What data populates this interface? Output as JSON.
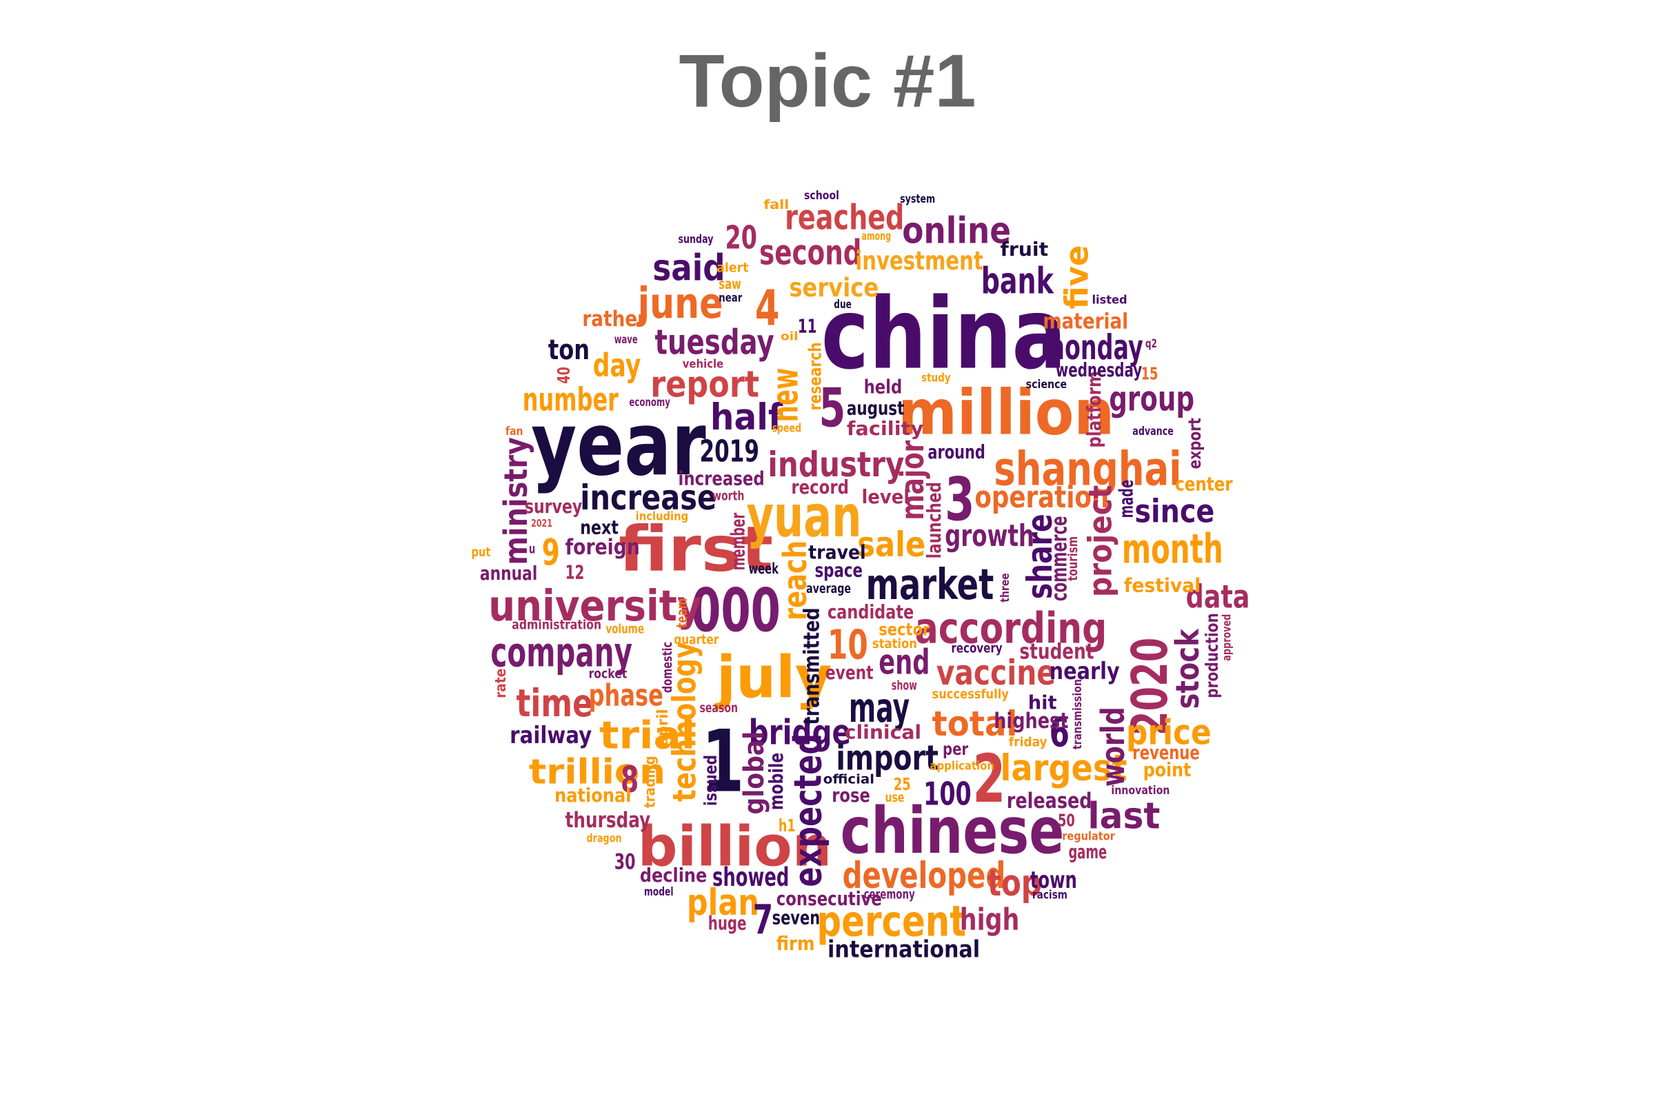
{
  "title": "Topic #1",
  "palette": [
    "#1b0c41",
    "#4a0c6b",
    "#781c6d",
    "#a52c60",
    "#cf4446",
    "#ed6925",
    "#fb9b06",
    "#f7a41a"
  ],
  "words": [
    {
      "text": "china",
      "color": "#4a0c6b"
    },
    {
      "text": "year",
      "color": "#1b0c41"
    },
    {
      "text": "million",
      "color": "#ed6925"
    },
    {
      "text": "chinese",
      "color": "#781c6d"
    },
    {
      "text": "first",
      "color": "#cf4446"
    },
    {
      "text": "yuan",
      "color": "#f7a41a"
    },
    {
      "text": "billion",
      "color": "#cf4446"
    },
    {
      "text": "000",
      "color": "#781c6d"
    },
    {
      "text": "1",
      "color": "#1b0c41"
    },
    {
      "text": "july",
      "color": "#fb9b06"
    },
    {
      "text": "shanghai",
      "color": "#ed6925"
    },
    {
      "text": "2020",
      "color": "#a52c60"
    },
    {
      "text": "according",
      "color": "#a52c60"
    },
    {
      "text": "market",
      "color": "#1b0c41"
    },
    {
      "text": "university",
      "color": "#a52c60"
    },
    {
      "text": "company",
      "color": "#781c6d"
    },
    {
      "text": "percent",
      "color": "#fb9b06"
    },
    {
      "text": "month",
      "color": "#fb9b06"
    },
    {
      "text": "2",
      "color": "#cf4446"
    },
    {
      "text": "3",
      "color": "#781c6d"
    },
    {
      "text": "4",
      "color": "#ed6925"
    },
    {
      "text": "5",
      "color": "#781c6d"
    },
    {
      "text": "may",
      "color": "#1b0c41"
    },
    {
      "text": "june",
      "color": "#ed6925"
    },
    {
      "text": "reached",
      "color": "#cf4446"
    },
    {
      "text": "online",
      "color": "#781c6d"
    },
    {
      "text": "second",
      "color": "#a52c60"
    },
    {
      "text": "bank",
      "color": "#4a0c6b"
    },
    {
      "text": "said",
      "color": "#4a0c6b"
    },
    {
      "text": "tuesday",
      "color": "#781c6d"
    },
    {
      "text": "monday",
      "color": "#4a0c6b"
    },
    {
      "text": "report",
      "color": "#cf4446"
    },
    {
      "text": "half",
      "color": "#4a0c6b"
    },
    {
      "text": "new",
      "color": "#fb9b06"
    },
    {
      "text": "industry",
      "color": "#a52c60"
    },
    {
      "text": "increase",
      "color": "#1b0c41"
    },
    {
      "text": "2019",
      "color": "#1b0c41"
    },
    {
      "text": "group",
      "color": "#781c6d"
    },
    {
      "text": "since",
      "color": "#4a0c6b"
    },
    {
      "text": "operation",
      "color": "#ed6925"
    },
    {
      "text": "growth",
      "color": "#781c6d"
    },
    {
      "text": "sale",
      "color": "#fb9b06"
    },
    {
      "text": "share",
      "color": "#4a0c6b"
    },
    {
      "text": "project",
      "color": "#a52c60"
    },
    {
      "text": "data",
      "color": "#a52c60"
    },
    {
      "text": "stock",
      "color": "#781c6d"
    },
    {
      "text": "vaccine",
      "color": "#cf4446"
    },
    {
      "text": "end",
      "color": "#781c6d"
    },
    {
      "text": "time",
      "color": "#cf4446"
    },
    {
      "text": "phase",
      "color": "#ed6925"
    },
    {
      "text": "technology",
      "color": "#fb9b06"
    },
    {
      "text": "trial",
      "color": "#fb9b06"
    },
    {
      "text": "bridge",
      "color": "#4a0c6b"
    },
    {
      "text": "import",
      "color": "#1b0c41"
    },
    {
      "text": "expected",
      "color": "#4a0c6b"
    },
    {
      "text": "total",
      "color": "#ed6925"
    },
    {
      "text": "largest",
      "color": "#fb9b06"
    },
    {
      "text": "world",
      "color": "#781c6d"
    },
    {
      "text": "price",
      "color": "#fb9b06"
    },
    {
      "text": "last",
      "color": "#781c6d"
    },
    {
      "text": "trillion",
      "color": "#fb9b06"
    },
    {
      "text": "developed",
      "color": "#ed6925"
    },
    {
      "text": "plan",
      "color": "#fb9b06"
    },
    {
      "text": "top",
      "color": "#cf4446"
    },
    {
      "text": "high",
      "color": "#a52c60"
    },
    {
      "text": "ministry",
      "color": "#781c6d"
    },
    {
      "text": "number",
      "color": "#fb9b06"
    },
    {
      "text": "day",
      "color": "#fb9b06"
    },
    {
      "text": "ton",
      "color": "#1b0c41"
    },
    {
      "text": "investment",
      "color": "#f7a41a"
    },
    {
      "text": "service",
      "color": "#f7a41a"
    },
    {
      "text": "five",
      "color": "#fb9b06"
    },
    {
      "text": "major",
      "color": "#a52c60"
    },
    {
      "text": "reach",
      "color": "#fb9b06"
    },
    {
      "text": "20",
      "color": "#a52c60"
    },
    {
      "text": "10",
      "color": "#ed6925"
    },
    {
      "text": "100",
      "color": "#4a0c6b"
    },
    {
      "text": "6",
      "color": "#4a0c6b"
    },
    {
      "text": "7",
      "color": "#4a0c6b"
    },
    {
      "text": "8",
      "color": "#a52c60"
    },
    {
      "text": "9",
      "color": "#fb9b06"
    },
    {
      "text": "global",
      "color": "#781c6d"
    },
    {
      "text": "railway",
      "color": "#4a0c6b"
    },
    {
      "text": "thursday",
      "color": "#a52c60"
    },
    {
      "text": "showed",
      "color": "#4a0c6b"
    },
    {
      "text": "international",
      "color": "#1b0c41"
    },
    {
      "text": "seven",
      "color": "#1b0c41"
    },
    {
      "text": "consecutive",
      "color": "#781c6d"
    },
    {
      "text": "town",
      "color": "#4a0c6b"
    },
    {
      "text": "released",
      "color": "#781c6d"
    },
    {
      "text": "highest",
      "color": "#781c6d"
    },
    {
      "text": "nearly",
      "color": "#4a0c6b"
    },
    {
      "text": "student",
      "color": "#a52c60"
    },
    {
      "text": "transmitted",
      "color": "#1b0c41"
    },
    {
      "text": "candidate",
      "color": "#a52c60"
    },
    {
      "text": "travel",
      "color": "#1b0c41"
    },
    {
      "text": "space",
      "color": "#4a0c6b"
    },
    {
      "text": "fruit",
      "color": "#1b0c41"
    },
    {
      "text": "rather",
      "color": "#ed6925"
    },
    {
      "text": "national",
      "color": "#fb9b06"
    },
    {
      "text": "foreign",
      "color": "#781c6d"
    },
    {
      "text": "next",
      "color": "#1b0c41"
    },
    {
      "text": "annual",
      "color": "#781c6d"
    },
    {
      "text": "survey",
      "color": "#a52c60"
    },
    {
      "text": "increased",
      "color": "#781c6d"
    },
    {
      "text": "august",
      "color": "#1b0c41"
    },
    {
      "text": "facility",
      "color": "#a52c60"
    },
    {
      "text": "held",
      "color": "#781c6d"
    },
    {
      "text": "around",
      "color": "#4a0c6b"
    },
    {
      "text": "record",
      "color": "#a52c60"
    },
    {
      "text": "level",
      "color": "#a52c60"
    },
    {
      "text": "launched",
      "color": "#a52c60"
    },
    {
      "text": "member",
      "color": "#a52c60"
    },
    {
      "text": "commerce",
      "color": "#781c6d"
    },
    {
      "text": "festival",
      "color": "#fb9b06"
    },
    {
      "text": "production",
      "color": "#781c6d"
    },
    {
      "text": "revenue",
      "color": "#ed6925"
    },
    {
      "text": "point",
      "color": "#fb9b06"
    },
    {
      "text": "center",
      "color": "#fb9b06"
    },
    {
      "text": "export",
      "color": "#781c6d"
    },
    {
      "text": "made",
      "color": "#4a0c6b"
    },
    {
      "text": "platform",
      "color": "#a52c60"
    },
    {
      "text": "wednesday",
      "color": "#4a0c6b"
    },
    {
      "text": "material",
      "color": "#ed6925"
    },
    {
      "text": "mobile",
      "color": "#4a0c6b"
    },
    {
      "text": "rose",
      "color": "#781c6d"
    },
    {
      "text": "clinical",
      "color": "#a52c60"
    },
    {
      "text": "event",
      "color": "#a52c60"
    },
    {
      "text": "issued",
      "color": "#4a0c6b"
    },
    {
      "text": "decline",
      "color": "#781c6d"
    },
    {
      "text": "huge",
      "color": "#a52c60"
    },
    {
      "text": "firm",
      "color": "#fb9b06"
    },
    {
      "text": "game",
      "color": "#a52c60"
    },
    {
      "text": "hit",
      "color": "#4a0c6b"
    },
    {
      "text": "12",
      "color": "#a52c60"
    },
    {
      "text": "11",
      "color": "#4a0c6b"
    },
    {
      "text": "15",
      "color": "#ed6925"
    },
    {
      "text": "25",
      "color": "#fb9b06"
    },
    {
      "text": "30",
      "color": "#781c6d"
    },
    {
      "text": "40",
      "color": "#cf4446"
    },
    {
      "text": "50",
      "color": "#a52c60"
    },
    {
      "text": "sector",
      "color": "#fb9b06"
    },
    {
      "text": "week",
      "color": "#1b0c41"
    },
    {
      "text": "per",
      "color": "#781c6d"
    },
    {
      "text": "h1",
      "color": "#fb9b06"
    },
    {
      "text": "put",
      "color": "#fb9b06"
    },
    {
      "text": "u",
      "color": "#781c6d"
    },
    {
      "text": "trading",
      "color": "#fb9b06"
    },
    {
      "text": "april",
      "color": "#fb9b06"
    },
    {
      "text": "research",
      "color": "#fb9b06"
    },
    {
      "text": "team",
      "color": "#ed6925"
    },
    {
      "text": "domestic",
      "color": "#781c6d"
    },
    {
      "text": "rate",
      "color": "#cf4446"
    },
    {
      "text": "volume",
      "color": "#fb9b06"
    },
    {
      "text": "rocket",
      "color": "#781c6d"
    },
    {
      "text": "administration",
      "color": "#a52c60"
    },
    {
      "text": "quarter",
      "color": "#fb9b06"
    },
    {
      "text": "season",
      "color": "#a52c60"
    },
    {
      "text": "official",
      "color": "#1b0c41"
    },
    {
      "text": "use",
      "color": "#fb9b06"
    },
    {
      "text": "ceremony",
      "color": "#781c6d"
    },
    {
      "text": "application",
      "color": "#fb9b06"
    },
    {
      "text": "successfully",
      "color": "#fb9b06"
    },
    {
      "text": "friday",
      "color": "#fb9b06"
    },
    {
      "text": "transmission",
      "color": "#781c6d"
    },
    {
      "text": "tourism",
      "color": "#a52c60"
    },
    {
      "text": "three",
      "color": "#781c6d"
    },
    {
      "text": "recovery",
      "color": "#4a0c6b"
    },
    {
      "text": "station",
      "color": "#fb9b06"
    },
    {
      "text": "show",
      "color": "#a52c60"
    },
    {
      "text": "average",
      "color": "#1b0c41"
    },
    {
      "text": "worth",
      "color": "#a52c60"
    },
    {
      "text": "including",
      "color": "#fb9b06"
    },
    {
      "text": "2021",
      "color": "#cf4446"
    },
    {
      "text": "fan",
      "color": "#ed6925"
    },
    {
      "text": "economy",
      "color": "#781c6d"
    },
    {
      "text": "speed",
      "color": "#fb9b06"
    },
    {
      "text": "vehicle",
      "color": "#a52c60"
    },
    {
      "text": "oil",
      "color": "#fb9b06"
    },
    {
      "text": "wave",
      "color": "#781c6d"
    },
    {
      "text": "due",
      "color": "#1b0c41"
    },
    {
      "text": "near",
      "color": "#1b0c41"
    },
    {
      "text": "saw",
      "color": "#fb9b06"
    },
    {
      "text": "alert",
      "color": "#fb9b06"
    },
    {
      "text": "among",
      "color": "#fb9b06"
    },
    {
      "text": "sunday",
      "color": "#4a0c6b"
    },
    {
      "text": "fall",
      "color": "#fb9b06"
    },
    {
      "text": "school",
      "color": "#4a0c6b"
    },
    {
      "text": "system",
      "color": "#1b0c41"
    },
    {
      "text": "listed",
      "color": "#4a0c6b"
    },
    {
      "text": "q2",
      "color": "#781c6d"
    },
    {
      "text": "study",
      "color": "#fb9b06"
    },
    {
      "text": "science",
      "color": "#1b0c41"
    },
    {
      "text": "advance",
      "color": "#4a0c6b"
    },
    {
      "text": "innovation",
      "color": "#781c6d"
    },
    {
      "text": "regulator",
      "color": "#ed6925"
    },
    {
      "text": "racism",
      "color": "#4a0c6b"
    },
    {
      "text": "dragon",
      "color": "#fb9b06"
    },
    {
      "text": "model",
      "color": "#4a0c6b"
    },
    {
      "text": "approved",
      "color": "#a52c60"
    }
  ]
}
